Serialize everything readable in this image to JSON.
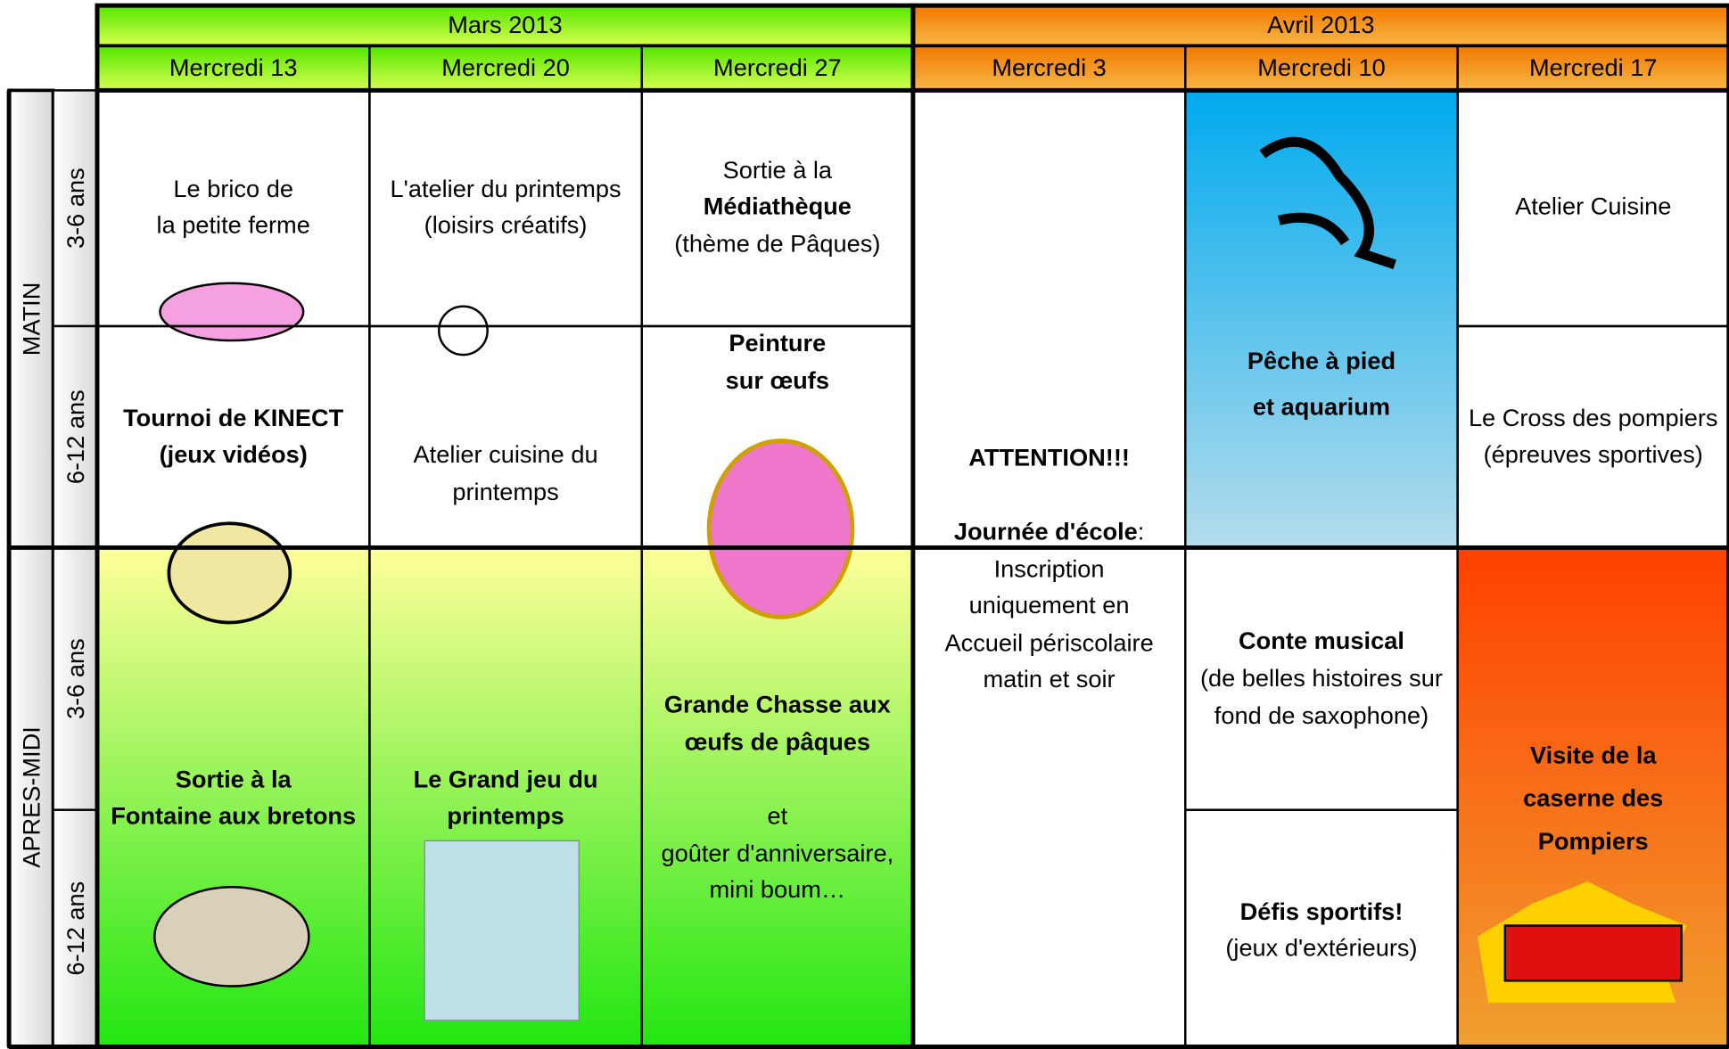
{
  "months": [
    "Mars 2013",
    "Avril 2013"
  ],
  "days": [
    "Mercredi 13",
    "Mercredi 20",
    "Mercredi 27",
    "Mercredi 3",
    "Mercredi 10",
    "Mercredi 17"
  ],
  "periods": [
    {
      "label": "MATIN",
      "ages": [
        "3-6 ans",
        "6-12 ans"
      ]
    },
    {
      "label": "APRES-MIDI",
      "ages": [
        "3-6 ans",
        "6-12 ans"
      ]
    }
  ],
  "cells": [
    {
      "lines": [
        [
          {
            "text": "Le brico de"
          }
        ],
        [
          {
            "text": "la petite ferme"
          }
        ]
      ]
    },
    {
      "lines": [
        [
          {
            "text": "Tournoi de KINECT",
            "bold": true
          }
        ],
        [
          {
            "text": "(jeux vidéos)",
            "bold": true
          }
        ]
      ]
    },
    {
      "lines": [
        [
          {
            "text": "Sortie à la",
            "bold": true
          }
        ],
        [
          {
            "text": "Fontaine aux bretons",
            "bold": true
          }
        ]
      ]
    },
    {
      "lines": [
        [
          {
            "text": "L'atelier du printemps"
          }
        ],
        [
          {
            "text": "(loisirs créatifs)"
          }
        ]
      ]
    },
    {
      "lines": [
        [
          {
            "text": "Atelier cuisine du"
          }
        ],
        [
          {
            "text": "printemps"
          }
        ]
      ]
    },
    {
      "lines": [
        [
          {
            "text": "Le Grand jeu du",
            "bold": true
          }
        ],
        [
          {
            "text": "printemps",
            "bold": true
          }
        ]
      ]
    },
    {
      "lines": [
        [
          {
            "text": "Sortie à la"
          }
        ],
        [
          {
            "text": "Médiathèque",
            "bold": true
          }
        ],
        [
          {
            "text": "(thème de Pâques)"
          }
        ]
      ]
    },
    {
      "lines": [
        [
          {
            "text": "Peinture",
            "bold": true
          }
        ],
        [
          {
            "text": "sur œufs",
            "bold": true
          }
        ]
      ]
    },
    {
      "lines": [
        [
          {
            "text": "Grande Chasse aux",
            "bold": true
          }
        ],
        [
          {
            "text": "œufs de pâques",
            "bold": true
          }
        ],
        [
          {
            "text": "et"
          }
        ],
        [
          {
            "text": "goûter d'anniversaire,"
          }
        ],
        [
          {
            "text": "mini boum…"
          }
        ]
      ]
    },
    {
      "lines": [
        [
          {
            "text": "ATTENTION!!!",
            "bold": true
          }
        ],
        [
          {
            "text": "Journée d'école",
            "bold": true
          },
          {
            "text": ":"
          }
        ],
        [
          {
            "text": "Inscription"
          }
        ],
        [
          {
            "text": "uniquement en"
          }
        ],
        [
          {
            "text": "Accueil périscolaire"
          }
        ],
        [
          {
            "text": "matin et soir"
          }
        ]
      ]
    },
    {
      "lines": [
        [
          {
            "text": "Pêche à pied",
            "bold": true
          }
        ],
        [
          {
            "text": "et aquarium",
            "bold": true
          }
        ]
      ]
    },
    {
      "lines": [
        [
          {
            "text": "Conte musical",
            "bold": true
          }
        ],
        [
          {
            "text": "(de belles histoires sur"
          }
        ],
        [
          {
            "text": "fond de saxophone)"
          }
        ]
      ]
    },
    {
      "lines": [
        [
          {
            "text": "Défis sportifs!",
            "bold": true
          }
        ],
        [
          {
            "text": "(jeux d'extérieurs)"
          }
        ]
      ]
    },
    {
      "lines": [
        [
          {
            "text": "Atelier Cuisine"
          }
        ]
      ]
    },
    {
      "lines": [
        [
          {
            "text": "Le Cross des pompiers"
          }
        ],
        [
          {
            "text": "(épreuves sportives)"
          }
        ]
      ]
    },
    {
      "lines": [
        [
          {
            "text": "Visite de la",
            "bold": true
          }
        ],
        [
          {
            "text": "caserne des",
            "bold": true
          }
        ],
        [
          {
            "text": "Pompiers",
            "bold": true
          }
        ]
      ]
    }
  ]
}
